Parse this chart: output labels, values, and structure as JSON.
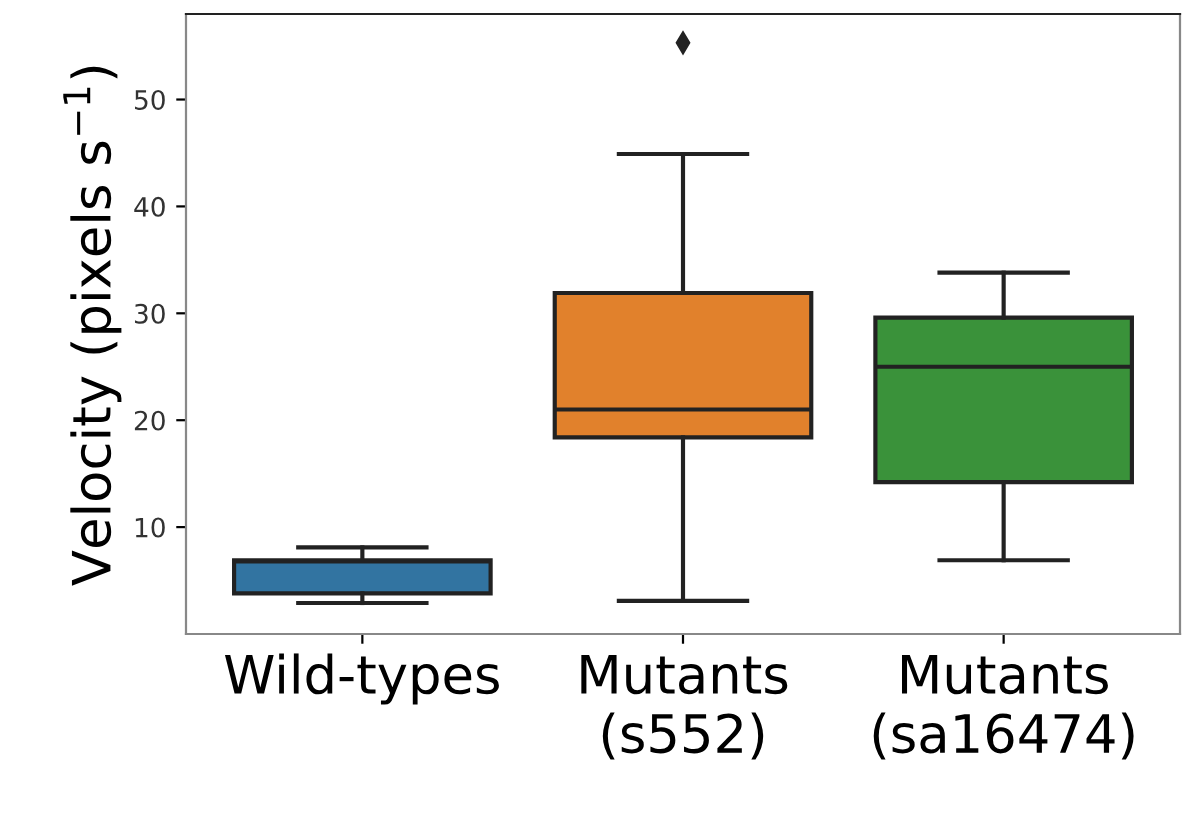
{
  "chart_data": {
    "type": "box",
    "ylabel": "Velocity (pixels s$^{−1}$)",
    "categories": [
      "Wild-types",
      "Mutants\n(s552)",
      "Mutants\n(sa16474)"
    ],
    "colors": [
      "#3274a1",
      "#e1812c",
      "#3a923a"
    ],
    "boxes": [
      {
        "low": 2.9,
        "q1": 3.8,
        "median": 6.8,
        "q3": 6.9,
        "high": 8.1
      },
      {
        "low": 3.1,
        "q1": 18.4,
        "median": 21.0,
        "q3": 31.9,
        "high": 44.9,
        "outliers": [
          55.3
        ]
      },
      {
        "low": 6.9,
        "q1": 14.2,
        "median": 25.0,
        "q3": 29.6,
        "high": 33.8
      }
    ],
    "ylim": [
      0,
      58
    ],
    "yticks": [
      10,
      20,
      30,
      40,
      50
    ],
    "grid": false
  }
}
